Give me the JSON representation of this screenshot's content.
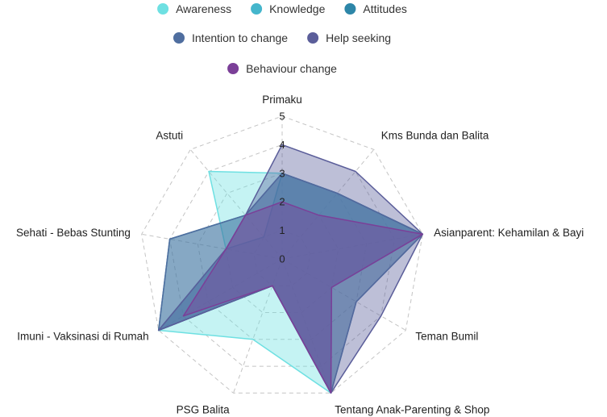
{
  "chart_data": {
    "type": "radar",
    "title": "",
    "axes": [
      "Primaku",
      "Kms Bunda dan Balita",
      "Asianparent: Kehamilan & Bayi",
      "Teman Bumil",
      "Tentang Anak-Parenting & Shop",
      "PSG Balita",
      "Imuni - Vaksinasi di Rumah",
      "Sehati - Bebas Stunting",
      "Astuti"
    ],
    "rlim": [
      0,
      5
    ],
    "ticks": [
      "0",
      "1",
      "2",
      "3",
      "4",
      "5"
    ],
    "grid": true,
    "legend_position": "top",
    "series": [
      {
        "name": "Awareness",
        "color": "#6ee0e2",
        "values": [
          3,
          3,
          5,
          2,
          5,
          3,
          5,
          2,
          4
        ]
      },
      {
        "name": "Knowledge",
        "color": "#45b6cc",
        "values": [
          3,
          3,
          5,
          2,
          5,
          1,
          5,
          2,
          1
        ]
      },
      {
        "name": "Attitudes",
        "color": "#2d86a8",
        "values": [
          3,
          3,
          5,
          3,
          5,
          1,
          5,
          4,
          2
        ]
      },
      {
        "name": "Intention to change",
        "color": "#4f6e9f",
        "values": [
          3,
          3,
          5,
          3,
          5,
          1,
          5,
          4,
          2
        ]
      },
      {
        "name": "Help seeking",
        "color": "#5b5e9a",
        "values": [
          4,
          4,
          5,
          4,
          5,
          1,
          5,
          2,
          2
        ]
      },
      {
        "name": "Behaviour change",
        "color": "#7b3f98",
        "values": [
          2,
          2,
          5,
          2,
          5,
          1,
          4,
          2,
          2
        ]
      }
    ]
  }
}
